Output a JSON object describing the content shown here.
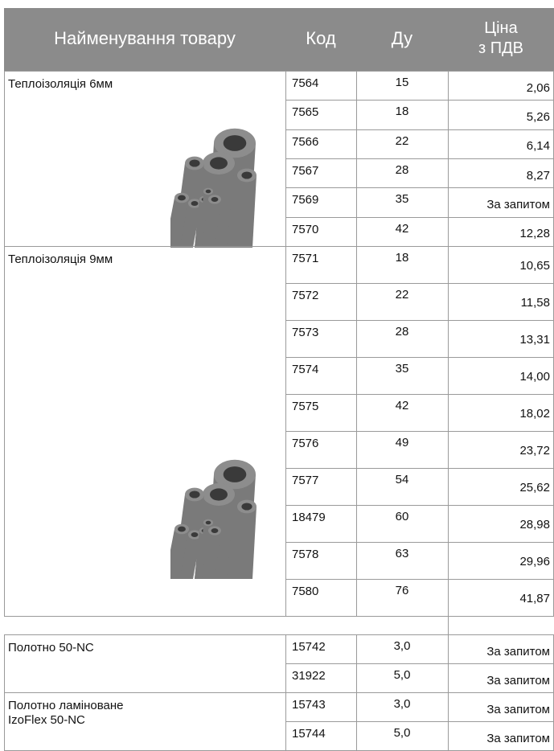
{
  "table": {
    "header": {
      "name": "Найменування товару",
      "code": "Код",
      "du": "Ду",
      "price": [
        "Ціна",
        "з ПДВ"
      ]
    },
    "groups": [
      {
        "name": "Теплоізоляція 6мм",
        "rows": [
          [
            "7564",
            "15",
            "2,06"
          ],
          [
            "7565",
            "18",
            "5,26"
          ],
          [
            "7566",
            "22",
            "6,14"
          ],
          [
            "7567",
            "28",
            "8,27"
          ],
          [
            "7569",
            "35",
            "За запитом"
          ],
          [
            "7570",
            "42",
            "12,28"
          ]
        ]
      },
      {
        "name": "Теплоізоляція 9мм",
        "rows": [
          [
            "7571",
            "18",
            "10,65"
          ],
          [
            "7572",
            "22",
            "11,58"
          ],
          [
            "7573",
            "28",
            "13,31"
          ],
          [
            "7574",
            "35",
            "14,00"
          ],
          [
            "7575",
            "42",
            "18,02"
          ],
          [
            "7576",
            "49",
            "23,72"
          ],
          [
            "7577",
            "54",
            "25,62"
          ],
          [
            "18479",
            "60",
            "28,98"
          ],
          [
            "7578",
            "63",
            "29,96"
          ],
          [
            "7580",
            "76",
            "41,87"
          ]
        ]
      },
      {
        "name": "Полотно 50-NC",
        "rows": [
          [
            "15742",
            "3,0",
            "За запитом"
          ],
          [
            "31922",
            "5,0",
            "За запитом"
          ]
        ]
      },
      {
        "name": "Полотно ламіноване IzoFlex 50-NC",
        "rows": [
          [
            "15743",
            "3,0",
            "За запитом"
          ],
          [
            "15744",
            "5,0",
            "За запитом"
          ]
        ]
      }
    ]
  }
}
